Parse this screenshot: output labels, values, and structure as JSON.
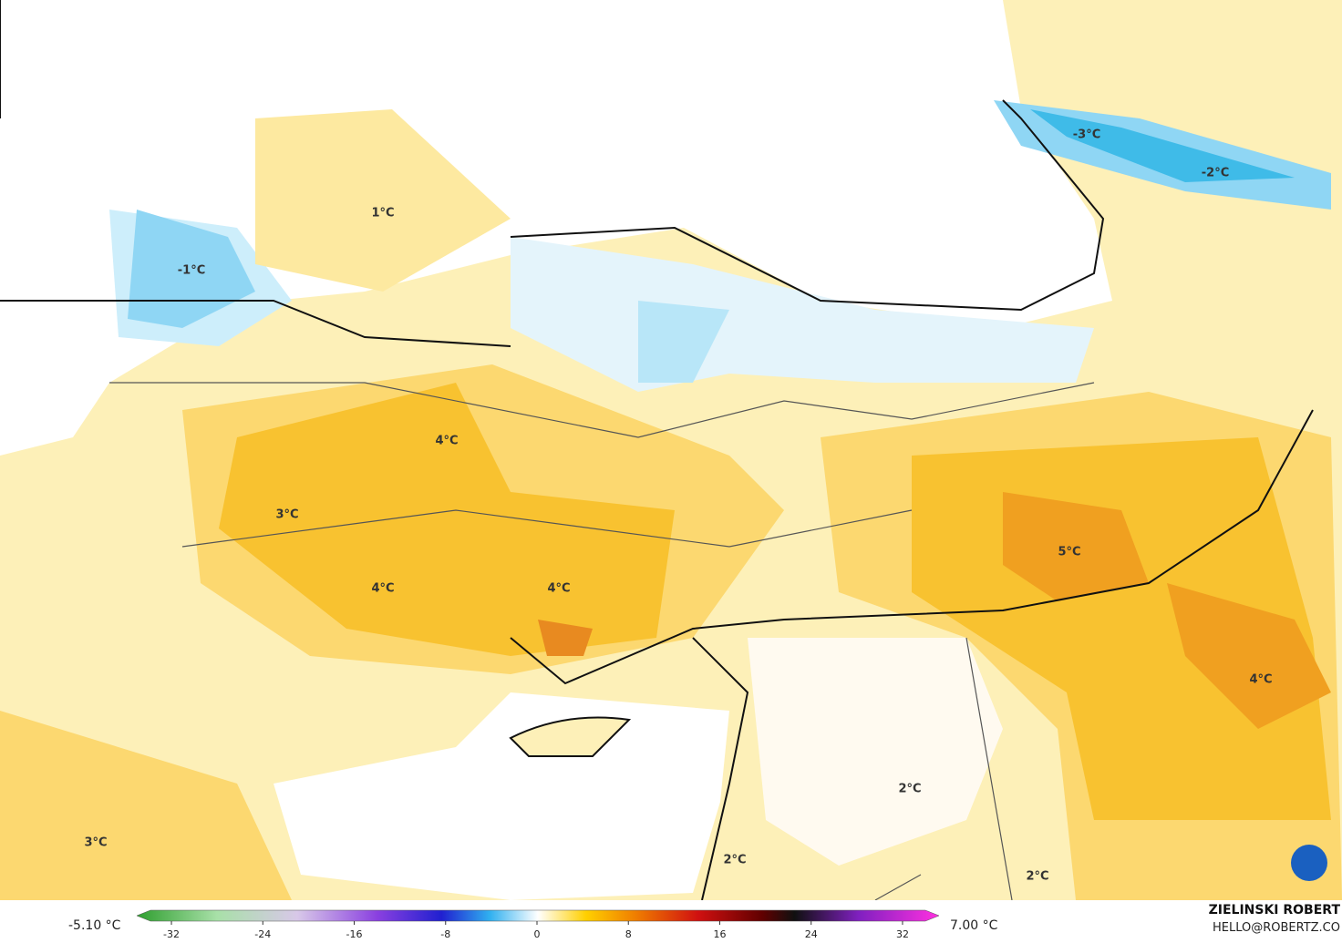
{
  "map_labels": [
    "1°C",
    "-1°C",
    "-3°C",
    "-2°C",
    "4°C",
    "3°C",
    "4°C",
    "4°C",
    "5°C",
    "4°C",
    "2°C",
    "2°C",
    "3°C",
    "2°C"
  ],
  "colorbar": {
    "min_label": "-5.10 °C",
    "max_label": "7.00 °C",
    "ticks": [
      -32,
      -24,
      -16,
      -8,
      0,
      8,
      16,
      24,
      32
    ]
  },
  "credit": {
    "name": "ZIELINSKI ROBERT",
    "email": "HELLO@ROBERTZ.CO"
  }
}
